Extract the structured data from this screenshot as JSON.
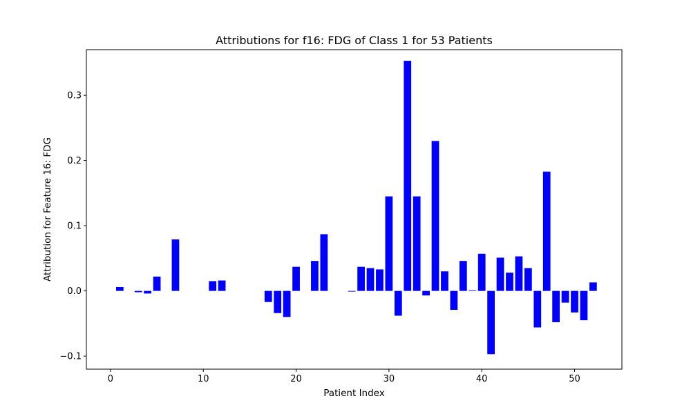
{
  "chart_data": {
    "type": "bar",
    "title": "Attributions for f16: FDG of Class 1 for 53 Patients",
    "xlabel": "Patient Index",
    "ylabel": "Attribution for Feature 16: FDG",
    "xlim": [
      -2.6,
      55.1
    ],
    "ylim": [
      -0.12,
      0.37
    ],
    "xticks": [
      0,
      10,
      20,
      30,
      40,
      50
    ],
    "xtick_labels": [
      "0",
      "10",
      "20",
      "30",
      "40",
      "50"
    ],
    "yticks": [
      -0.1,
      0.0,
      0.1,
      0.2,
      0.3
    ],
    "ytick_labels": [
      "−0.1",
      "0.0",
      "0.1",
      "0.2",
      "0.3"
    ],
    "grid": false,
    "bar_color": "#0000ff",
    "x": [
      0,
      1,
      2,
      3,
      4,
      5,
      6,
      7,
      8,
      9,
      10,
      11,
      12,
      13,
      14,
      15,
      16,
      17,
      18,
      19,
      20,
      21,
      22,
      23,
      24,
      25,
      26,
      27,
      28,
      29,
      30,
      31,
      32,
      33,
      34,
      35,
      36,
      37,
      38,
      39,
      40,
      41,
      42,
      43,
      44,
      45,
      46,
      47,
      48,
      49,
      50,
      51,
      52
    ],
    "values": [
      0.0,
      0.006,
      0.0,
      -0.002,
      -0.004,
      0.022,
      0.0,
      0.079,
      0.0,
      0.0,
      0.0,
      0.015,
      0.016,
      0.0,
      0.0,
      0.0,
      0.0,
      -0.017,
      -0.034,
      -0.04,
      0.037,
      0.0,
      0.046,
      0.087,
      0.0,
      0.0,
      -0.001,
      0.037,
      0.035,
      0.033,
      0.145,
      -0.038,
      0.353,
      0.145,
      -0.007,
      0.23,
      0.03,
      -0.029,
      0.046,
      0.001,
      0.057,
      -0.097,
      0.051,
      0.028,
      0.053,
      0.035,
      -0.056,
      0.183,
      -0.048,
      -0.018,
      -0.033,
      -0.045,
      0.013
    ]
  }
}
